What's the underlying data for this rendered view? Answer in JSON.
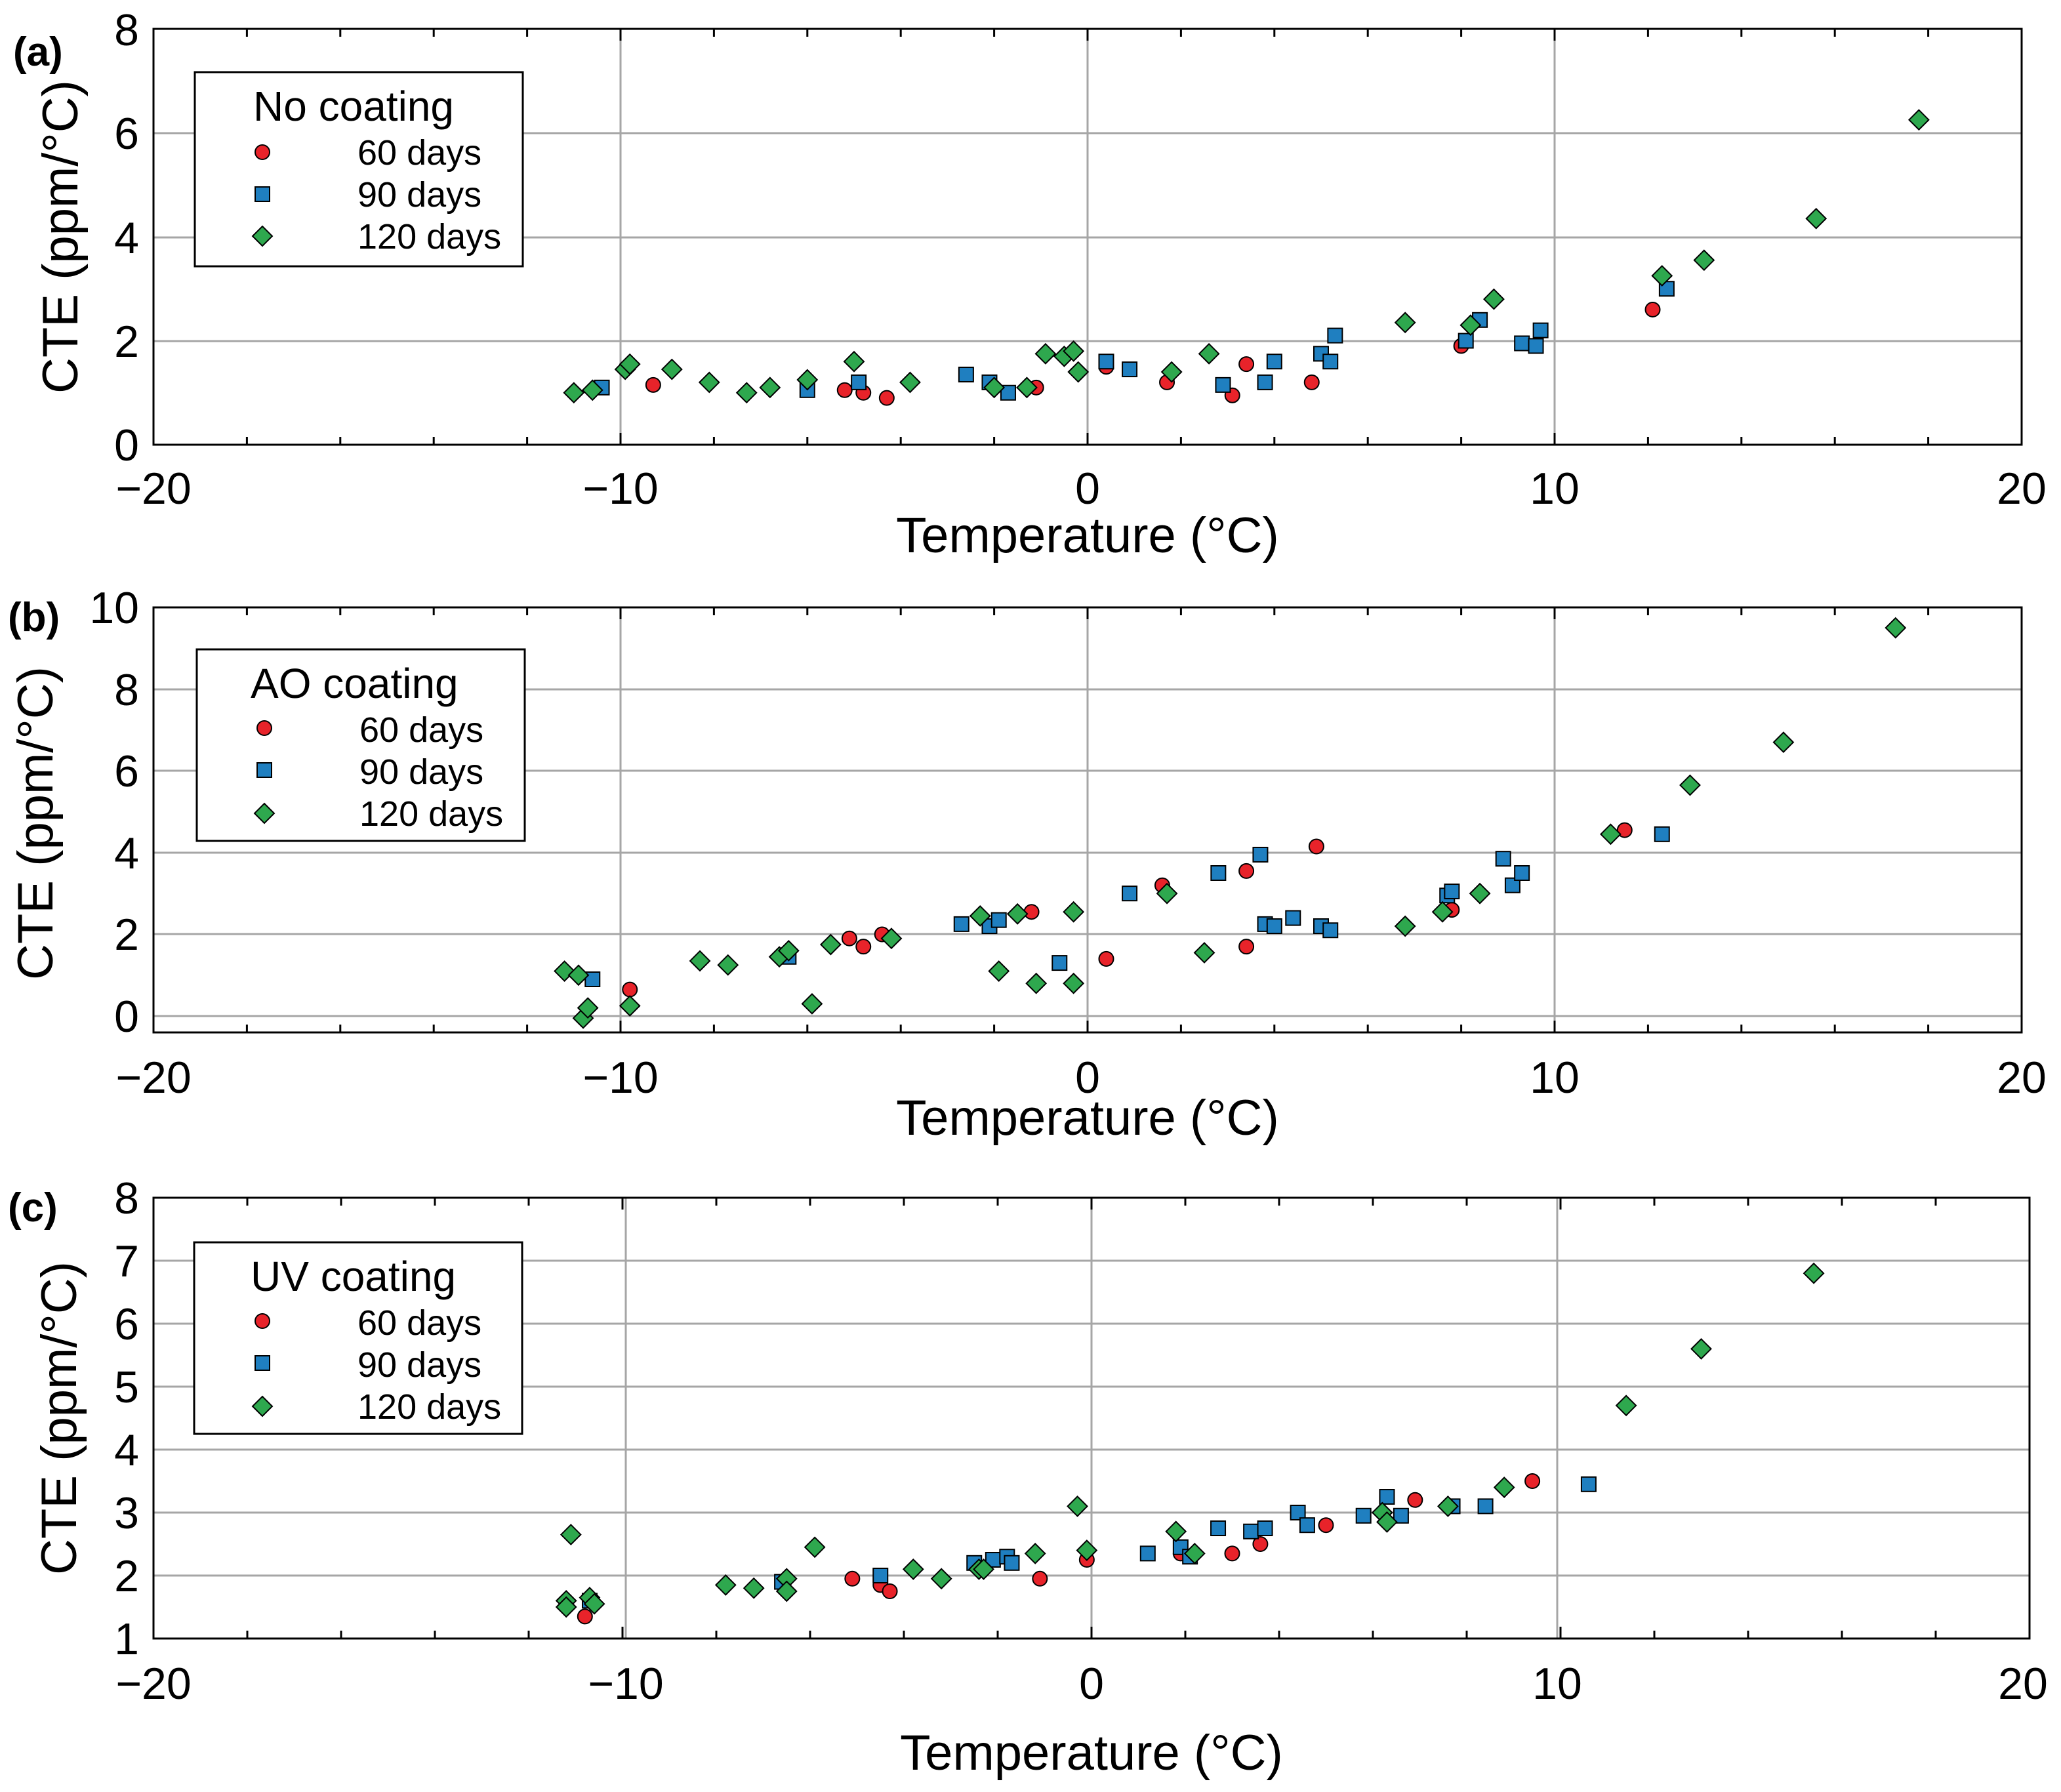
{
  "colors": {
    "d60": "#e8232a",
    "d90": "#1f7fc0",
    "d120": "#2ea84e",
    "grid": "#a6a6a6"
  },
  "chart_data": [
    {
      "type": "scatter",
      "panel_label": "(a)",
      "legend_title": "No coating",
      "xlabel": "Temperature (°C)",
      "ylabel": "CTE (ppm/°C)",
      "xlim": [
        -20,
        20
      ],
      "ylim": [
        0,
        8
      ],
      "xticks": [
        -20,
        -10,
        0,
        10,
        20
      ],
      "xtick_labels": [
        "−20",
        "−10",
        "0",
        "10",
        "20"
      ],
      "yticks": [
        0,
        2,
        4,
        6,
        8
      ],
      "ytick_labels": [
        "0",
        "2",
        "4",
        "6",
        "8"
      ],
      "series": [
        {
          "name": "60 days",
          "marker": "circle",
          "color": "#e8232a",
          "points": [
            [
              -9.3,
              1.15
            ],
            [
              -5.2,
              1.05
            ],
            [
              -4.8,
              1.0
            ],
            [
              -4.3,
              0.9
            ],
            [
              -1.1,
              1.1
            ],
            [
              0.4,
              1.5
            ],
            [
              1.7,
              1.2
            ],
            [
              3.1,
              0.95
            ],
            [
              3.4,
              1.55
            ],
            [
              4.8,
              1.2
            ],
            [
              8.0,
              1.9
            ],
            [
              12.1,
              2.6
            ]
          ]
        },
        {
          "name": "90 days",
          "marker": "square",
          "color": "#1f7fc0",
          "points": [
            [
              -10.4,
              1.1
            ],
            [
              -6.0,
              1.05
            ],
            [
              -4.9,
              1.2
            ],
            [
              -2.6,
              1.35
            ],
            [
              -2.1,
              1.2
            ],
            [
              -1.7,
              1.0
            ],
            [
              0.4,
              1.6
            ],
            [
              0.9,
              1.45
            ],
            [
              2.9,
              1.15
            ],
            [
              3.8,
              1.2
            ],
            [
              4.0,
              1.6
            ],
            [
              5.0,
              1.75
            ],
            [
              5.2,
              1.6
            ],
            [
              5.3,
              2.1
            ],
            [
              8.1,
              2.0
            ],
            [
              8.4,
              2.4
            ],
            [
              9.3,
              1.95
            ],
            [
              9.6,
              1.9
            ],
            [
              9.7,
              2.2
            ],
            [
              12.4,
              3.0
            ]
          ]
        },
        {
          "name": "120 days",
          "marker": "diamond",
          "color": "#2ea84e",
          "points": [
            [
              -11.0,
              1.0
            ],
            [
              -10.6,
              1.05
            ],
            [
              -9.9,
              1.45
            ],
            [
              -9.8,
              1.55
            ],
            [
              -8.9,
              1.45
            ],
            [
              -8.1,
              1.2
            ],
            [
              -7.3,
              1.0
            ],
            [
              -6.8,
              1.1
            ],
            [
              -6.0,
              1.25
            ],
            [
              -5.0,
              1.6
            ],
            [
              -3.8,
              1.2
            ],
            [
              -2.0,
              1.1
            ],
            [
              -1.3,
              1.1
            ],
            [
              -0.9,
              1.75
            ],
            [
              -0.5,
              1.7
            ],
            [
              -0.3,
              1.8
            ],
            [
              -0.2,
              1.4
            ],
            [
              1.8,
              1.4
            ],
            [
              2.6,
              1.75
            ],
            [
              6.8,
              2.35
            ],
            [
              8.2,
              2.3
            ],
            [
              8.7,
              2.8
            ],
            [
              12.3,
              3.25
            ],
            [
              13.2,
              3.55
            ],
            [
              15.6,
              4.35
            ],
            [
              17.8,
              6.25
            ]
          ]
        }
      ]
    },
    {
      "type": "scatter",
      "panel_label": "(b)",
      "legend_title": "AO coating",
      "xlabel": "Temperature (°C)",
      "ylabel": "CTE (ppm/°C)",
      "xlim": [
        -20,
        20
      ],
      "ylim": [
        -0.4,
        10
      ],
      "xticks": [
        -20,
        -10,
        0,
        10,
        20
      ],
      "xtick_labels": [
        "−20",
        "−10",
        "0",
        "10",
        "20"
      ],
      "yticks": [
        0,
        2,
        4,
        6,
        8,
        10
      ],
      "ytick_labels": [
        "0",
        "2",
        "4",
        "6",
        "8",
        "10"
      ],
      "series": [
        {
          "name": "60 days",
          "marker": "circle",
          "color": "#e8232a",
          "points": [
            [
              -9.8,
              0.65
            ],
            [
              -5.1,
              1.9
            ],
            [
              -4.8,
              1.7
            ],
            [
              -4.4,
              2.0
            ],
            [
              -1.2,
              2.55
            ],
            [
              0.4,
              1.4
            ],
            [
              1.6,
              3.2
            ],
            [
              3.4,
              3.55
            ],
            [
              3.4,
              1.7
            ],
            [
              4.9,
              4.15
            ],
            [
              7.8,
              2.6
            ],
            [
              11.5,
              4.55
            ]
          ]
        },
        {
          "name": "90 days",
          "marker": "square",
          "color": "#1f7fc0",
          "points": [
            [
              -10.6,
              0.9
            ],
            [
              -6.4,
              1.45
            ],
            [
              -2.7,
              2.25
            ],
            [
              -2.1,
              2.2
            ],
            [
              -1.9,
              2.35
            ],
            [
              -0.6,
              1.3
            ],
            [
              0.9,
              3.0
            ],
            [
              2.8,
              3.5
            ],
            [
              3.7,
              3.95
            ],
            [
              3.8,
              2.25
            ],
            [
              4.0,
              2.2
            ],
            [
              4.4,
              2.4
            ],
            [
              5.0,
              2.2
            ],
            [
              5.2,
              2.1
            ],
            [
              7.7,
              2.95
            ],
            [
              7.8,
              3.05
            ],
            [
              8.9,
              3.85
            ],
            [
              9.1,
              3.2
            ],
            [
              9.3,
              3.5
            ],
            [
              12.3,
              4.45
            ]
          ]
        },
        {
          "name": "120 days",
          "marker": "diamond",
          "color": "#2ea84e",
          "points": [
            [
              -11.2,
              1.1
            ],
            [
              -10.9,
              1.0
            ],
            [
              -10.8,
              -0.05
            ],
            [
              -10.7,
              0.2
            ],
            [
              -9.8,
              0.25
            ],
            [
              -8.3,
              1.35
            ],
            [
              -7.7,
              1.25
            ],
            [
              -6.6,
              1.45
            ],
            [
              -6.4,
              1.6
            ],
            [
              -5.9,
              0.3
            ],
            [
              -5.5,
              1.75
            ],
            [
              -4.2,
              1.9
            ],
            [
              -2.3,
              2.45
            ],
            [
              -1.9,
              1.1
            ],
            [
              -1.5,
              2.5
            ],
            [
              -1.1,
              0.8
            ],
            [
              -0.3,
              2.55
            ],
            [
              -0.3,
              0.8
            ],
            [
              1.7,
              3.0
            ],
            [
              2.5,
              1.55
            ],
            [
              6.8,
              2.2
            ],
            [
              7.6,
              2.55
            ],
            [
              8.4,
              3.0
            ],
            [
              11.2,
              4.45
            ],
            [
              12.9,
              5.65
            ],
            [
              14.9,
              6.7
            ],
            [
              17.3,
              9.5
            ]
          ]
        }
      ]
    },
    {
      "type": "scatter",
      "panel_label": "(c)",
      "legend_title": "UV coating",
      "xlabel": "Temperature (°C)",
      "ylabel": "CTE (ppm/°C)",
      "xlim": [
        -20,
        20
      ],
      "ylim": [
        1,
        8
      ],
      "xticks": [
        -20,
        -10,
        0,
        10,
        20
      ],
      "xtick_labels": [
        "−20",
        "−10",
        "0",
        "10",
        "20"
      ],
      "yticks": [
        1,
        2,
        3,
        4,
        5,
        6,
        7,
        8
      ],
      "ytick_labels": [
        "1",
        "2",
        "3",
        "4",
        "5",
        "6",
        "7",
        "8"
      ],
      "series": [
        {
          "name": "60 days",
          "marker": "circle",
          "color": "#e8232a",
          "points": [
            [
              -10.8,
              1.35
            ],
            [
              -5.1,
              1.95
            ],
            [
              -4.5,
              1.85
            ],
            [
              -4.3,
              1.75
            ],
            [
              -1.1,
              1.95
            ],
            [
              -0.1,
              2.25
            ],
            [
              1.9,
              2.35
            ],
            [
              3.0,
              2.35
            ],
            [
              3.6,
              2.5
            ],
            [
              5.0,
              2.8
            ],
            [
              6.9,
              3.2
            ],
            [
              9.4,
              3.5
            ]
          ]
        },
        {
          "name": "90 days",
          "marker": "square",
          "color": "#1f7fc0",
          "points": [
            [
              -10.7,
              1.6
            ],
            [
              -6.6,
              1.9
            ],
            [
              -4.5,
              2.0
            ],
            [
              -2.5,
              2.2
            ],
            [
              -2.1,
              2.25
            ],
            [
              -1.8,
              2.3
            ],
            [
              -1.7,
              2.2
            ],
            [
              1.2,
              2.35
            ],
            [
              1.9,
              2.45
            ],
            [
              2.1,
              2.3
            ],
            [
              2.7,
              2.75
            ],
            [
              3.4,
              2.7
            ],
            [
              3.7,
              2.75
            ],
            [
              4.4,
              3.0
            ],
            [
              4.6,
              2.8
            ],
            [
              5.8,
              2.95
            ],
            [
              6.3,
              3.25
            ],
            [
              6.6,
              2.95
            ],
            [
              7.7,
              3.1
            ],
            [
              8.4,
              3.1
            ],
            [
              10.6,
              3.45
            ]
          ]
        },
        {
          "name": "120 days",
          "marker": "diamond",
          "color": "#2ea84e",
          "points": [
            [
              -11.1,
              2.65
            ],
            [
              -11.2,
              1.6
            ],
            [
              -11.2,
              1.5
            ],
            [
              -10.7,
              1.65
            ],
            [
              -10.6,
              1.55
            ],
            [
              -7.8,
              1.85
            ],
            [
              -7.2,
              1.8
            ],
            [
              -6.5,
              1.95
            ],
            [
              -6.5,
              1.75
            ],
            [
              -5.9,
              2.45
            ],
            [
              -3.8,
              2.1
            ],
            [
              -3.2,
              1.95
            ],
            [
              -2.4,
              2.1
            ],
            [
              -2.3,
              2.1
            ],
            [
              -1.2,
              2.35
            ],
            [
              -0.3,
              3.1
            ],
            [
              -0.1,
              2.4
            ],
            [
              1.8,
              2.7
            ],
            [
              2.2,
              2.35
            ],
            [
              6.2,
              3.0
            ],
            [
              6.3,
              2.85
            ],
            [
              7.6,
              3.1
            ],
            [
              8.8,
              3.4
            ],
            [
              11.4,
              4.7
            ],
            [
              13.0,
              5.6
            ],
            [
              15.4,
              6.8
            ]
          ]
        }
      ]
    }
  ]
}
